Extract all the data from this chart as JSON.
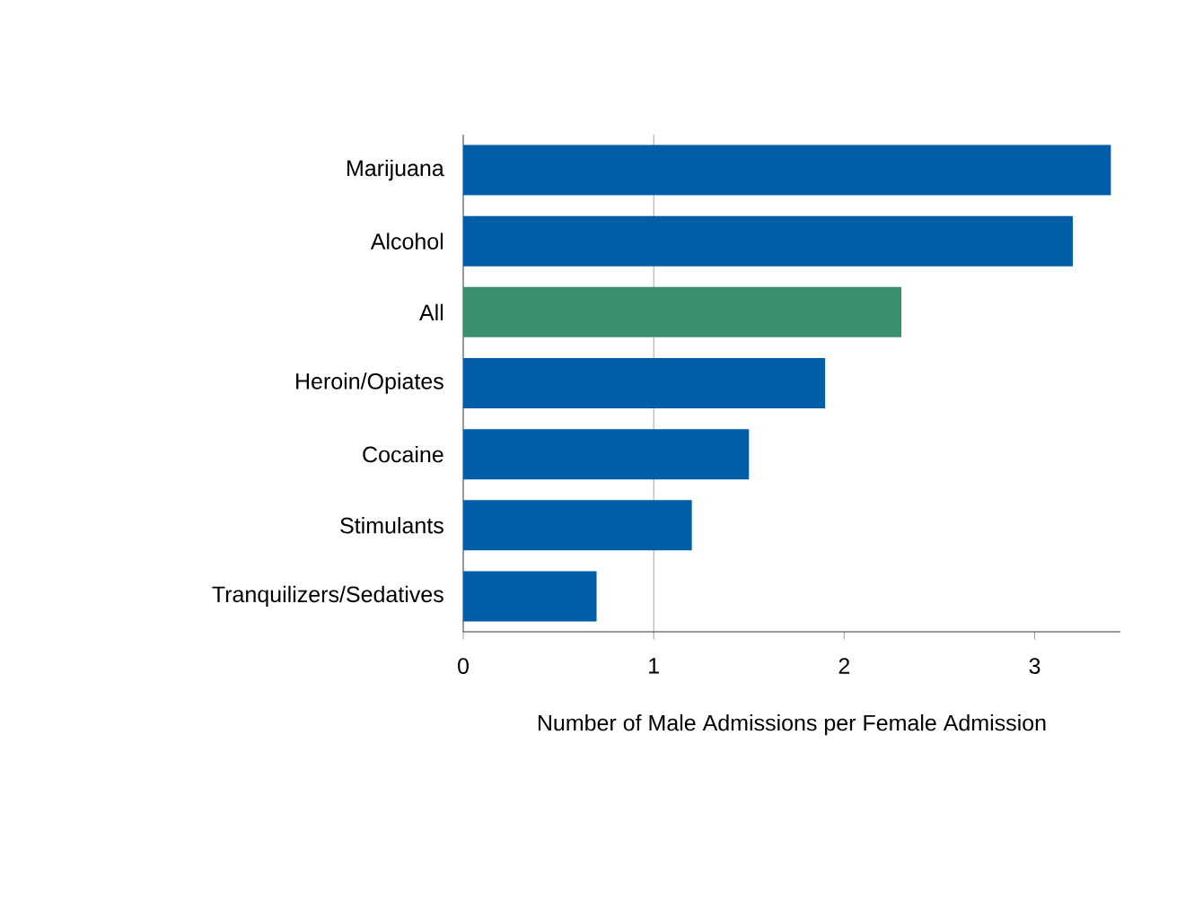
{
  "chart_data": {
    "type": "bar",
    "orientation": "horizontal",
    "xlabel": "Number of Male Admissions per Female Admission",
    "categories": [
      "Marijuana",
      "Alcohol",
      "All",
      "Heroin/Opiates",
      "Cocaine",
      "Stimulants",
      "Tranquilizers/Sedatives"
    ],
    "values": [
      3.4,
      3.2,
      2.3,
      1.9,
      1.5,
      1.2,
      0.7
    ],
    "colors": [
      "#005ea8",
      "#005ea8",
      "#3a8f6e",
      "#005ea8",
      "#005ea8",
      "#005ea8",
      "#005ea8"
    ],
    "xlim": [
      0,
      3.45
    ],
    "xticks": [
      0,
      1,
      2,
      3
    ],
    "ref_lines": [
      {
        "axis": "x",
        "value": 1,
        "color": "#909090"
      }
    ]
  }
}
